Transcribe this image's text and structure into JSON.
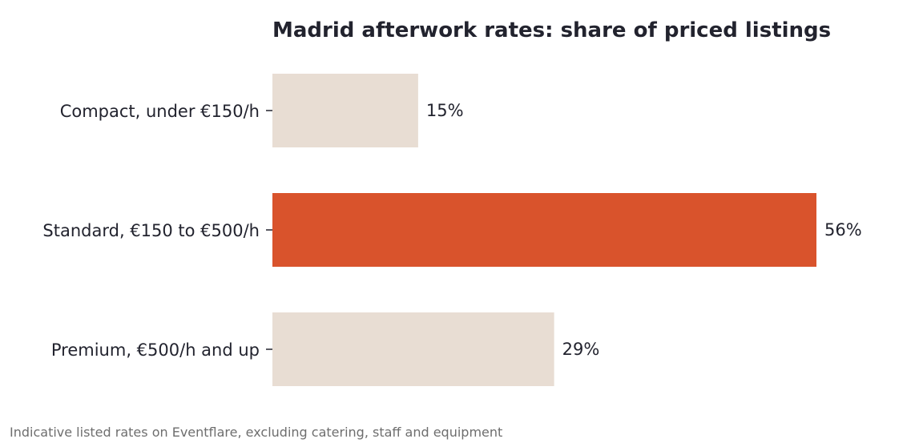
{
  "chart_data": {
    "type": "bar",
    "orientation": "horizontal",
    "title": "Madrid afterwork rates: share of priced listings",
    "categories": [
      "Compact, under €150/h",
      "Standard, €150 to €500/h",
      "Premium, €500/h and up"
    ],
    "values": [
      15,
      56,
      29
    ],
    "value_labels": [
      "15%",
      "56%",
      "29%"
    ],
    "xlim": [
      0,
      56
    ],
    "xlabel": "",
    "ylabel": "",
    "grid": false,
    "legend": "none",
    "highlight_index": 1
  },
  "footnote": "Indicative listed rates on Eventflare, excluding catering, staff and equipment",
  "colors": {
    "highlight": "#d9532c",
    "muted": "#e8ddd3",
    "text": "#22232e",
    "footnote": "#6e6e6e",
    "tick": "#22232e"
  }
}
